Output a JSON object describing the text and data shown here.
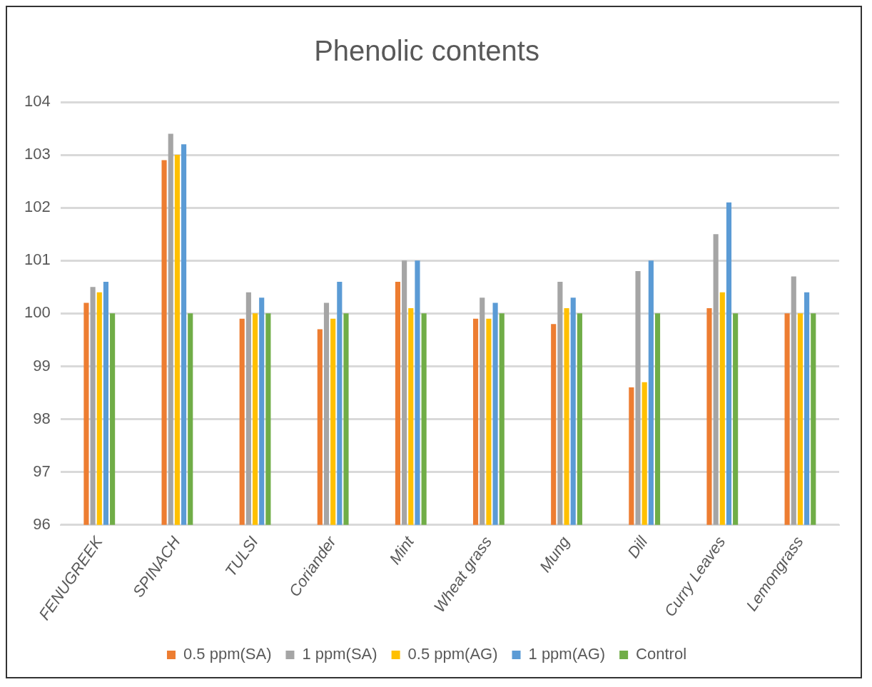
{
  "chart_data": {
    "type": "bar",
    "title": "Phenolic contents",
    "categories": [
      "FENUGREEK",
      "SPINACH",
      "TULSI",
      "Coriander",
      "Mint",
      "Wheat grass",
      "Mung",
      "Dill",
      "Curry Leaves",
      "Lemongrass"
    ],
    "series": [
      {
        "name": "0.5 ppm(SA)",
        "color": "#ed7d31",
        "values": [
          100.2,
          102.9,
          99.9,
          99.7,
          100.6,
          99.9,
          99.8,
          98.6,
          100.1,
          100.0
        ]
      },
      {
        "name": "1 ppm(SA)",
        "color": "#a5a5a5",
        "values": [
          100.5,
          103.4,
          100.4,
          100.2,
          101.0,
          100.3,
          100.6,
          100.8,
          101.5,
          100.7
        ]
      },
      {
        "name": "0.5 ppm(AG)",
        "color": "#ffc000",
        "values": [
          100.4,
          103.0,
          100.0,
          99.9,
          100.1,
          99.9,
          100.1,
          98.7,
          100.4,
          100.0
        ]
      },
      {
        "name": "1 ppm(AG)",
        "color": "#5b9bd5",
        "values": [
          100.6,
          103.2,
          100.3,
          100.6,
          101.0,
          100.2,
          100.3,
          101.0,
          102.1,
          100.4
        ]
      },
      {
        "name": "Control",
        "color": "#70ad47",
        "values": [
          100,
          100,
          100,
          100,
          100,
          100,
          100,
          100,
          100,
          100
        ]
      }
    ],
    "ylim": [
      96,
      104
    ],
    "yticks": [
      96,
      97,
      98,
      99,
      100,
      101,
      102,
      103,
      104
    ],
    "grid": "y",
    "legend": "bottom"
  }
}
